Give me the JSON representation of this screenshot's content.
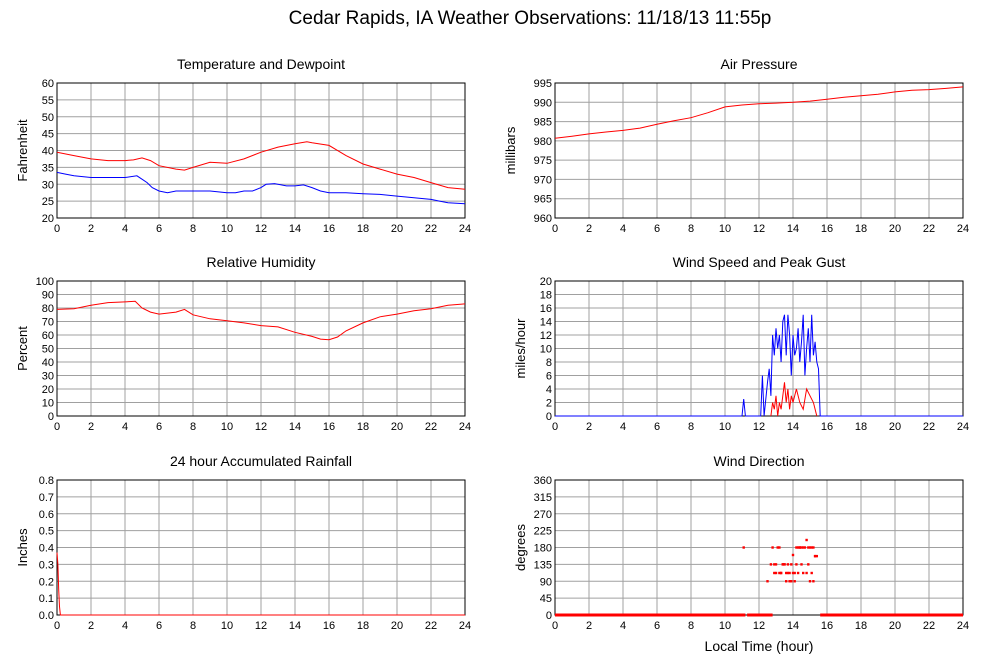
{
  "page": {
    "title": "Cedar Rapids, IA Weather Observations: 11/18/13 11:55p",
    "xlabel": "Local Time (hour)"
  },
  "colors": {
    "red": "#ff0000",
    "blue": "#0000ff",
    "grid": "#a0a0a0",
    "frame": "#000000"
  },
  "chart_data": [
    {
      "id": "temp",
      "type": "line",
      "title": "Temperature and Dewpoint",
      "xlabel": "",
      "ylabel": "Fahrenheit",
      "xlim": [
        0,
        24
      ],
      "ylim": [
        20,
        60
      ],
      "xticks": [
        0,
        2,
        4,
        6,
        8,
        10,
        12,
        14,
        16,
        18,
        20,
        22,
        24
      ],
      "yticks": [
        20,
        25,
        30,
        35,
        40,
        45,
        50,
        55,
        60
      ],
      "grid": true,
      "series": [
        {
          "color": "#ff0000",
          "x": [
            0,
            1,
            2,
            3,
            4,
            4.5,
            5,
            5.5,
            6,
            7,
            7.5,
            8,
            9,
            10,
            11,
            12,
            13,
            14,
            14.7,
            15,
            16,
            17,
            18,
            19,
            20,
            21,
            22,
            23,
            24
          ],
          "y": [
            39.5,
            38.5,
            37.5,
            37,
            37,
            37.2,
            37.8,
            37,
            35.5,
            34.5,
            34.2,
            35,
            36.5,
            36.2,
            37.5,
            39.5,
            41,
            42,
            42.6,
            42.3,
            41.5,
            38.5,
            36,
            34.5,
            33,
            32,
            30.5,
            29,
            28.5
          ]
        },
        {
          "color": "#0000ff",
          "x": [
            0,
            0.5,
            1,
            2,
            3,
            4,
            4.7,
            5,
            5.3,
            5.6,
            6,
            6.5,
            7,
            8,
            9,
            10,
            10.5,
            11,
            11.5,
            12,
            12.3,
            12.8,
            13.5,
            14,
            14.5,
            15,
            15.5,
            16,
            17,
            18,
            19,
            20,
            21,
            22,
            22.5,
            23,
            24
          ],
          "y": [
            33.5,
            33,
            32.5,
            32,
            32,
            32,
            32.5,
            31.5,
            30.5,
            29,
            28,
            27.5,
            28,
            28,
            28,
            27.5,
            27.5,
            28,
            28,
            29,
            30,
            30.2,
            29.5,
            29.5,
            29.8,
            29,
            28,
            27.5,
            27.5,
            27.2,
            27,
            26.5,
            26,
            25.5,
            25,
            24.5,
            24.2
          ]
        }
      ]
    },
    {
      "id": "pressure",
      "type": "line",
      "title": "Air Pressure",
      "xlabel": "",
      "ylabel": "millibars",
      "xlim": [
        0,
        24
      ],
      "ylim": [
        960,
        995
      ],
      "xticks": [
        0,
        2,
        4,
        6,
        8,
        10,
        12,
        14,
        16,
        18,
        20,
        22,
        24
      ],
      "yticks": [
        960,
        965,
        970,
        975,
        980,
        985,
        990,
        995
      ],
      "grid": true,
      "series": [
        {
          "color": "#ff0000",
          "x": [
            0,
            1,
            2,
            3,
            4,
            5,
            6,
            7,
            8,
            9,
            10,
            11,
            12,
            13,
            14,
            15,
            16,
            17,
            18,
            19,
            20,
            21,
            22,
            23,
            24
          ],
          "y": [
            980.7,
            981.2,
            981.8,
            982.3,
            982.7,
            983.3,
            984.3,
            985.2,
            986,
            987.3,
            988.8,
            989.3,
            989.6,
            989.8,
            990,
            990.3,
            990.8,
            991.3,
            991.7,
            992.1,
            992.7,
            993.1,
            993.3,
            993.6,
            994
          ]
        }
      ]
    },
    {
      "id": "humidity",
      "type": "line",
      "title": "Relative Humidity",
      "xlabel": "",
      "ylabel": "Percent",
      "xlim": [
        0,
        24
      ],
      "ylim": [
        0,
        100
      ],
      "xticks": [
        0,
        2,
        4,
        6,
        8,
        10,
        12,
        14,
        16,
        18,
        20,
        22,
        24
      ],
      "yticks": [
        0,
        10,
        20,
        30,
        40,
        50,
        60,
        70,
        80,
        90,
        100
      ],
      "grid": true,
      "series": [
        {
          "color": "#ff0000",
          "x": [
            0,
            1,
            2,
            3,
            4,
            4.6,
            5,
            5.5,
            6,
            7,
            7.5,
            8,
            9,
            10,
            11,
            12,
            13,
            14,
            15,
            15.5,
            16,
            16.5,
            17,
            18,
            19,
            20,
            21,
            22,
            23,
            24
          ],
          "y": [
            79,
            79.5,
            82,
            84,
            84.5,
            85,
            80,
            77,
            75.5,
            77,
            79,
            75,
            72,
            70.5,
            69,
            67,
            66,
            62,
            59,
            57,
            56.5,
            58.5,
            63,
            69,
            73.5,
            75.5,
            78,
            79.5,
            82,
            83
          ]
        }
      ]
    },
    {
      "id": "wind",
      "type": "line",
      "title": "Wind Speed and Peak Gust",
      "xlabel": "",
      "ylabel": "miles/hour",
      "xlim": [
        0,
        24
      ],
      "ylim": [
        0,
        20
      ],
      "xticks": [
        0,
        2,
        4,
        6,
        8,
        10,
        12,
        14,
        16,
        18,
        20,
        22,
        24
      ],
      "yticks": [
        0,
        2,
        4,
        6,
        8,
        10,
        12,
        14,
        16,
        18,
        20
      ],
      "grid": true,
      "series": [
        {
          "color": "#0000ff",
          "x": [
            0,
            11,
            11.1,
            11.2,
            11.3,
            12.1,
            12.2,
            12.3,
            12.5,
            12.6,
            12.7,
            12.8,
            12.9,
            13,
            13.1,
            13.2,
            13.3,
            13.4,
            13.5,
            13.6,
            13.7,
            13.8,
            13.9,
            14,
            14.1,
            14.2,
            14.3,
            14.4,
            14.5,
            14.6,
            14.7,
            14.8,
            14.9,
            15,
            15.1,
            15.2,
            15.3,
            15.4,
            15.5,
            15.6,
            24
          ],
          "y": [
            0,
            0,
            2.5,
            0,
            0,
            0,
            6,
            0,
            5,
            7,
            3,
            12,
            9,
            13,
            10,
            12,
            8,
            14,
            15,
            9,
            15,
            12,
            6,
            12,
            9,
            10,
            13,
            8,
            11,
            15,
            6,
            10,
            13,
            8,
            15,
            9,
            11,
            8,
            7,
            0,
            0
          ]
        },
        {
          "color": "#ff0000",
          "x": [
            12.7,
            12.8,
            12.9,
            13,
            13.1,
            13.2,
            13.3,
            13.4,
            13.5,
            13.6,
            13.7,
            13.8,
            13.9,
            14,
            14.2,
            14.4,
            14.6,
            14.8,
            15,
            15.2,
            15.3,
            15.4
          ],
          "y": [
            0,
            2,
            1,
            3,
            0,
            2,
            1,
            3,
            5,
            2,
            4,
            1,
            3,
            2,
            4,
            2,
            1,
            4,
            3,
            2,
            1,
            0
          ]
        }
      ]
    },
    {
      "id": "rain",
      "type": "line",
      "title": "24 hour Accumulated Rainfall",
      "xlabel": "",
      "ylabel": "Inches",
      "xlim": [
        0,
        24
      ],
      "ylim": [
        0,
        0.8
      ],
      "xticks": [
        0,
        2,
        4,
        6,
        8,
        10,
        12,
        14,
        16,
        18,
        20,
        22,
        24
      ],
      "yticks": [
        0.0,
        0.1,
        0.2,
        0.3,
        0.4,
        0.5,
        0.6,
        0.7,
        0.8
      ],
      "ytick_labels": [
        "0.0",
        "0.1",
        "0.2",
        "0.3",
        "0.4",
        "0.5",
        "0.6",
        "0.7",
        "0.8"
      ],
      "grid": true,
      "series": [
        {
          "color": "#ff0000",
          "x": [
            0,
            0.05,
            0.1,
            0.15,
            0.2,
            24
          ],
          "y": [
            0.37,
            0.3,
            0.15,
            0.05,
            0,
            0
          ]
        }
      ]
    },
    {
      "id": "direction",
      "type": "scatter",
      "title": "Wind Direction",
      "xlabel": "Local Time (hour)",
      "ylabel": "degrees",
      "xlim": [
        0,
        24
      ],
      "ylim": [
        0,
        360
      ],
      "xticks": [
        0,
        2,
        4,
        6,
        8,
        10,
        12,
        14,
        16,
        18,
        20,
        22,
        24
      ],
      "yticks": [
        0,
        45,
        90,
        135,
        180,
        225,
        270,
        315,
        360
      ],
      "grid": true,
      "series": [
        {
          "color": "#ff0000",
          "zero_line_segments": [
            [
              0,
              11.2
            ],
            [
              11.3,
              12.8
            ],
            [
              15.6,
              24
            ]
          ],
          "x": [
            11.1,
            12.5,
            12.8,
            12.9,
            13.0,
            12.9,
            13.1,
            13.2,
            13.3,
            13.4,
            13.5,
            13.6,
            13.7,
            13.8,
            13.9,
            14.0,
            14.1,
            14.2,
            14.3,
            14.4,
            14.5,
            14.6,
            14.7,
            14.8,
            14.9,
            15.0,
            15.1,
            15.2,
            15.3,
            15.4,
            13.0,
            13.2,
            13.5,
            13.8,
            14.0,
            14.3,
            14.6,
            14.9,
            15.2,
            13.4,
            13.7,
            14.1,
            14.5,
            14.8,
            15.1,
            12.7,
            13.3,
            13.9,
            14.4,
            13.6,
            14.2,
            15.0,
            15.3
          ],
          "y": [
            180,
            90,
            180,
            135,
            112,
            112,
            180,
            180,
            112,
            135,
            135,
            112,
            135,
            90,
            90,
            160,
            112,
            180,
            180,
            180,
            180,
            180,
            180,
            200,
            180,
            180,
            180,
            90,
            157,
            157,
            135,
            112,
            135,
            112,
            112,
            112,
            112,
            135,
            180,
            135,
            112,
            90,
            135,
            112,
            112,
            135,
            112,
            135,
            180,
            90,
            135,
            90,
            157
          ]
        }
      ]
    }
  ]
}
